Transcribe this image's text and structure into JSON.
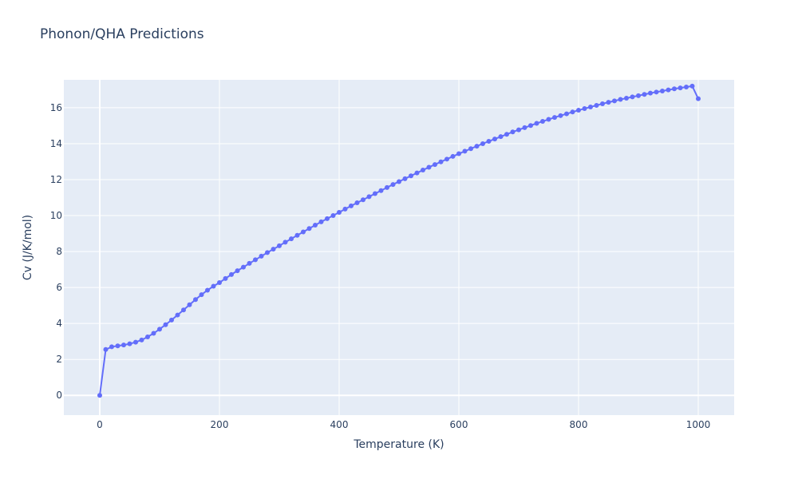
{
  "chart_data": {
    "type": "line",
    "title": "Phonon/QHA Predictions",
    "xlabel": "Temperature (K)",
    "ylabel": "Cv (J/K/mol)",
    "xlim": [
      -60,
      1060
    ],
    "ylim": [
      -1.1,
      17.55
    ],
    "x_ticks": [
      0,
      200,
      400,
      600,
      800,
      1000
    ],
    "y_ticks": [
      0,
      2,
      4,
      6,
      8,
      10,
      12,
      14,
      16
    ],
    "grid": true,
    "legend": "none",
    "colors": {
      "line": "#636efa",
      "plot_bg": "#e5ecf6",
      "grid": "#ffffff",
      "text": "#2a3f5f"
    },
    "series": [
      {
        "x": [
          0,
          10,
          20,
          30,
          40,
          50,
          60,
          70,
          80,
          90,
          100,
          110,
          120,
          130,
          140,
          150,
          160,
          170,
          180,
          190,
          200,
          210,
          220,
          230,
          240,
          250,
          260,
          270,
          280,
          290,
          300,
          310,
          320,
          330,
          340,
          350,
          360,
          370,
          380,
          390,
          400,
          410,
          420,
          430,
          440,
          450,
          460,
          470,
          480,
          490,
          500,
          510,
          520,
          530,
          540,
          550,
          560,
          570,
          580,
          590,
          600,
          610,
          620,
          630,
          640,
          650,
          660,
          670,
          680,
          690,
          700,
          710,
          720,
          730,
          740,
          750,
          760,
          770,
          780,
          790,
          800,
          810,
          820,
          830,
          840,
          850,
          860,
          870,
          880,
          890,
          900,
          910,
          920,
          930,
          940,
          950,
          960,
          970,
          980,
          990,
          1000
        ],
        "y": [
          0.0,
          2.55,
          2.7,
          2.75,
          2.8,
          2.87,
          2.96,
          3.08,
          3.25,
          3.45,
          3.68,
          3.93,
          4.19,
          4.47,
          4.75,
          5.04,
          5.33,
          5.6,
          5.85,
          6.07,
          6.27,
          6.5,
          6.72,
          6.93,
          7.13,
          7.34,
          7.54,
          7.74,
          7.94,
          8.13,
          8.32,
          8.52,
          8.71,
          8.9,
          9.09,
          9.28,
          9.47,
          9.65,
          9.83,
          10.0,
          10.18,
          10.36,
          10.54,
          10.71,
          10.88,
          11.05,
          11.22,
          11.39,
          11.56,
          11.73,
          11.89,
          12.05,
          12.21,
          12.37,
          12.53,
          12.69,
          12.84,
          12.99,
          13.14,
          13.29,
          13.44,
          13.58,
          13.72,
          13.86,
          14.0,
          14.13,
          14.26,
          14.39,
          14.52,
          14.65,
          14.77,
          14.89,
          15.01,
          15.13,
          15.24,
          15.35,
          15.46,
          15.56,
          15.66,
          15.76,
          15.86,
          15.95,
          16.04,
          16.13,
          16.22,
          16.3,
          16.38,
          16.46,
          16.53,
          16.6,
          16.67,
          16.74,
          16.81,
          16.87,
          16.93,
          16.99,
          17.05,
          17.1,
          17.15,
          17.2,
          16.5
        ]
      }
    ]
  }
}
